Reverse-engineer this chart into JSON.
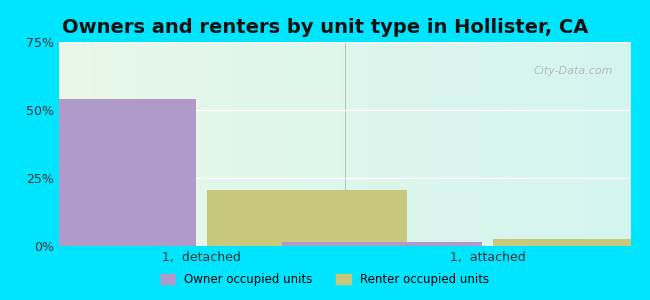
{
  "title": "Owners and renters by unit type in Hollister, CA",
  "categories": [
    "1,  detached",
    "1,  attached"
  ],
  "owner_values": [
    54.0,
    1.5
  ],
  "renter_values": [
    20.5,
    2.5
  ],
  "owner_color": "#b09aca",
  "renter_color": "#c8c87a",
  "ylim": [
    0,
    75
  ],
  "yticks": [
    0,
    25,
    50,
    75
  ],
  "yticklabels": [
    "0%",
    "25%",
    "50%",
    "75%"
  ],
  "background_outer": "#00e5ff",
  "title_fontsize": 14,
  "watermark": "City-Data.com",
  "bar_width": 0.35,
  "group_positions": [
    0.25,
    0.75
  ]
}
